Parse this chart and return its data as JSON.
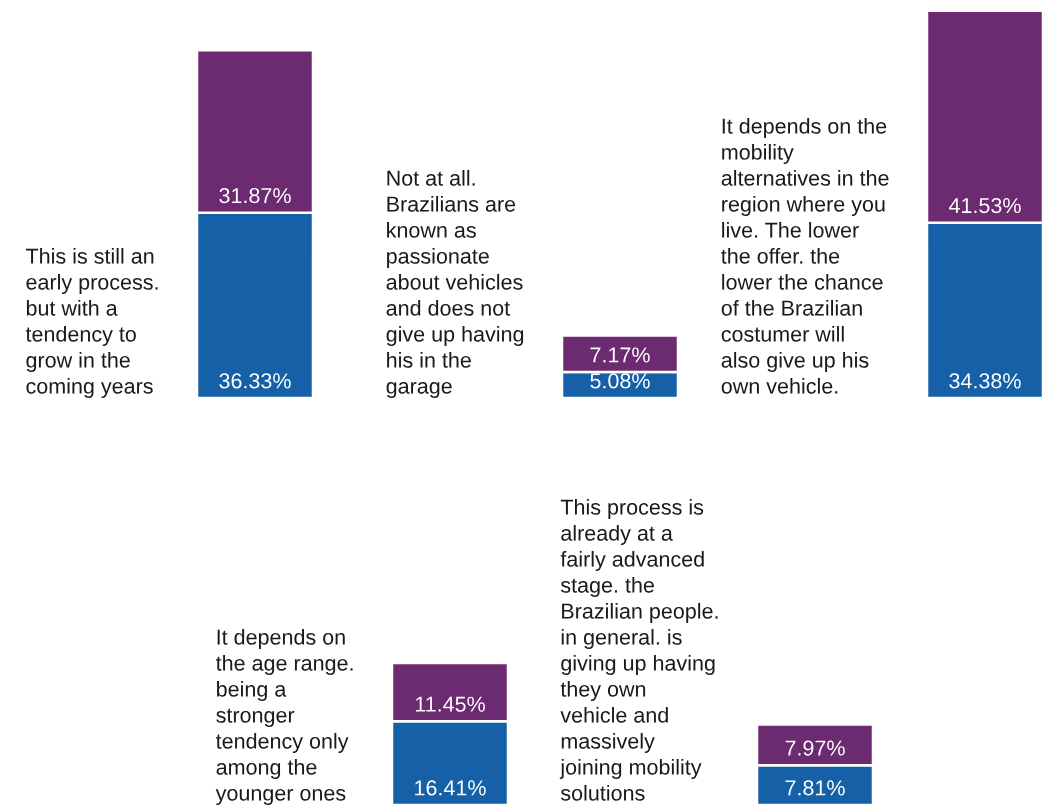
{
  "chart_data": [
    {
      "type": "bar",
      "stacked": true,
      "tick_labels": "x",
      "categories": [
        "This is still an\nearly process.\nbut with a\ntendency to\ngrow in the\ncoming years",
        "Not at all.\nBrazilians are\nknown as\npassionate\nabout vehicles\nand does not\ngive up having\nhis in the\ngarage",
        "It depends on the\nmobility\nalternatives in the\nregion where you\nlive. The lower\nthe offer. the\nlower the chance\nof the Brazilian\ncostumer will\nalso give up his\nown vehicle."
      ],
      "series": [
        {
          "color": "#1560a6",
          "values": [
            36.33,
            5.08,
            34.38
          ],
          "value_labels": [
            "36.33%",
            "5.08%",
            "34.38%"
          ]
        },
        {
          "color": "#6c2a70",
          "values": [
            31.87,
            7.17,
            41.53
          ],
          "value_labels": [
            "31.87%",
            "7.17%",
            "41.53%"
          ]
        }
      ]
    },
    {
      "type": "bar",
      "stacked": true,
      "tick_labels": "x",
      "categories": [
        "It depends on\nthe age range.\nbeing a\nstronger\ntendency only\namong the\nyounger ones",
        "This process is\nalready at a\nfairly advanced\nstage. the\nBrazilian people.\nin general. is\ngiving up having\nthey own\nvehicle and\nmassively\njoining mobility\nsolutions"
      ],
      "series": [
        {
          "color": "#1560a6",
          "values": [
            16.41,
            7.81
          ],
          "value_labels": [
            "16.41%",
            "7.81%"
          ]
        },
        {
          "color": "#6c2a70",
          "values": [
            11.45,
            7.97
          ],
          "value_labels": [
            "11.45%",
            "7.97%"
          ]
        }
      ]
    }
  ]
}
